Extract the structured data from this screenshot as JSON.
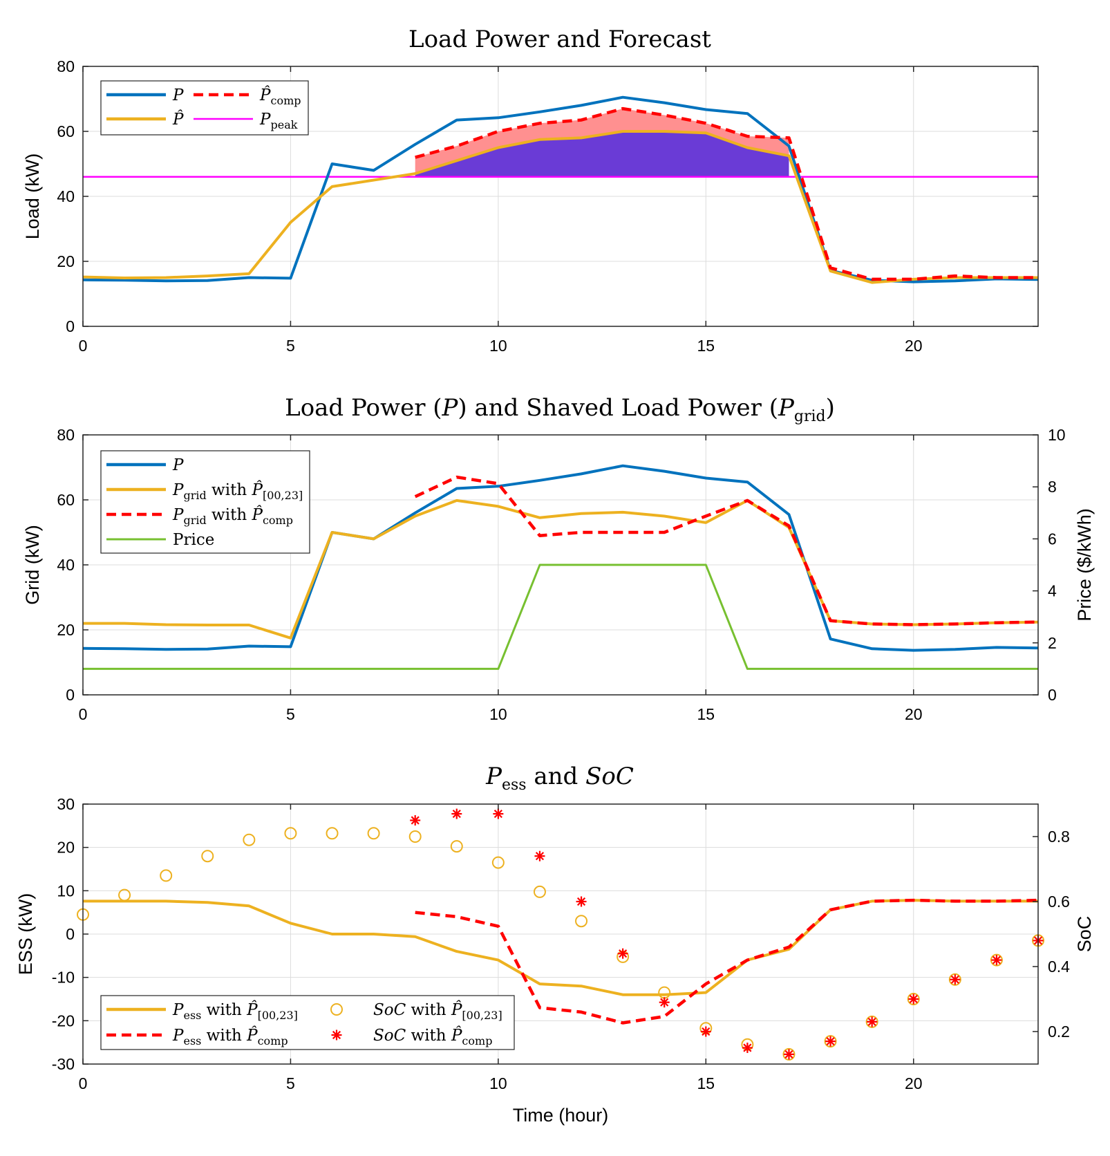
{
  "colors": {
    "P": "#0072BD",
    "Phat": "#EDB120",
    "Pcomp": "#FF0000",
    "Ppeak": "#FF00FF",
    "Price": "#77C030",
    "fillPink": "#FF9090",
    "fillPurple": "#6A3BD6",
    "axis": "#262626"
  },
  "xlabel": "Time (hour)",
  "chart_data": [
    {
      "id": "panel1",
      "type": "line",
      "title": "Load Power and Forecast",
      "xlabel": "",
      "ylabel": "Load (kW)",
      "xlim": [
        0,
        23
      ],
      "ylim": [
        0,
        80
      ],
      "xticks": [
        0,
        5,
        10,
        15,
        20
      ],
      "yticks": [
        0,
        20,
        40,
        60,
        80
      ],
      "peak_value": 46,
      "legend": [
        {
          "label": "P"
        },
        {
          "label": "P̂_comp"
        },
        {
          "label": "P̂"
        },
        {
          "label": "P_peak"
        }
      ],
      "series": [
        {
          "name": "P",
          "x": [
            0,
            1,
            2,
            3,
            4,
            5,
            6,
            7,
            8,
            9,
            10,
            11,
            12,
            13,
            14,
            15,
            16,
            17,
            18,
            19,
            20,
            21,
            22,
            23
          ],
          "values": [
            14.3,
            14.2,
            14.0,
            14.1,
            15.0,
            14.8,
            50.0,
            48.0,
            56.0,
            63.5,
            64.2,
            66.0,
            68.0,
            70.5,
            68.8,
            66.7,
            65.5,
            55.5,
            17.2,
            14.2,
            13.7,
            14.0,
            14.6,
            14.4
          ]
        },
        {
          "name": "P̂",
          "x": [
            0,
            1,
            2,
            3,
            4,
            5,
            6,
            7,
            8,
            9,
            10,
            11,
            12,
            13,
            14,
            15,
            16,
            17,
            18,
            19,
            20,
            21,
            22,
            23
          ],
          "values": [
            15.2,
            14.9,
            15.0,
            15.5,
            16.2,
            32.0,
            43.0,
            45.0,
            47.0,
            51.0,
            55.0,
            57.5,
            58.0,
            60.0,
            60.0,
            59.5,
            55.0,
            52.5,
            17.0,
            13.5,
            14.5,
            15.0,
            15.0,
            15.0
          ]
        },
        {
          "name": "P̂_comp",
          "x": [
            8,
            9,
            10,
            11,
            12,
            13,
            14,
            15,
            16,
            17,
            18,
            19,
            20,
            21,
            22,
            23
          ],
          "values": [
            52.0,
            55.5,
            60.0,
            62.5,
            63.5,
            67.0,
            65.0,
            62.5,
            58.5,
            58.0,
            18.0,
            14.5,
            14.5,
            15.5,
            15.0,
            15.0
          ]
        },
        {
          "name": "P_peak",
          "x": [
            0,
            23
          ],
          "values": [
            46,
            46
          ]
        }
      ]
    },
    {
      "id": "panel2",
      "type": "line",
      "title": "Load Power (P) and Shaved Load Power (P_grid)",
      "xlabel": "",
      "ylabel": "Grid (kW)",
      "y2label": "Price ($/kWh)",
      "xlim": [
        0,
        23
      ],
      "ylim": [
        0,
        80
      ],
      "y2lim": [
        0,
        10
      ],
      "xticks": [
        0,
        5,
        10,
        15,
        20
      ],
      "yticks": [
        0,
        20,
        40,
        60,
        80
      ],
      "y2ticks": [
        0,
        2,
        4,
        6,
        8,
        10
      ],
      "legend": [
        {
          "label": "P"
        },
        {
          "label": "P_grid with P̂_[00,23]"
        },
        {
          "label": "P_grid with P̂_comp"
        },
        {
          "label": "Price"
        }
      ],
      "series": [
        {
          "name": "P",
          "x": [
            0,
            1,
            2,
            3,
            4,
            5,
            6,
            7,
            8,
            9,
            10,
            11,
            12,
            13,
            14,
            15,
            16,
            17,
            18,
            19,
            20,
            21,
            22,
            23
          ],
          "values": [
            14.3,
            14.2,
            14.0,
            14.1,
            15.0,
            14.8,
            50.0,
            48.0,
            56.0,
            63.5,
            64.2,
            66.0,
            68.0,
            70.5,
            68.8,
            66.7,
            65.5,
            55.5,
            17.2,
            14.2,
            13.7,
            14.0,
            14.6,
            14.4
          ]
        },
        {
          "name": "P_grid with P̂_[00,23]",
          "x": [
            0,
            1,
            2,
            3,
            4,
            5,
            6,
            7,
            8,
            9,
            10,
            11,
            12,
            13,
            14,
            15,
            16,
            17,
            18,
            19,
            20,
            21,
            22,
            23
          ],
          "values": [
            22.0,
            22.0,
            21.6,
            21.5,
            21.5,
            17.5,
            50.0,
            48.0,
            55.0,
            59.8,
            58.0,
            54.5,
            55.8,
            56.2,
            55.0,
            53.0,
            59.8,
            51.5,
            22.8,
            21.8,
            21.6,
            21.8,
            22.2,
            22.4
          ]
        },
        {
          "name": "P_grid with P̂_comp",
          "x": [
            8,
            9,
            10,
            11,
            12,
            13,
            14,
            15,
            16,
            17,
            18,
            19,
            20,
            21,
            22,
            23
          ],
          "values": [
            61.0,
            67.0,
            65.0,
            49.0,
            50.0,
            50.0,
            50.0,
            55.0,
            59.8,
            52.0,
            22.8,
            21.8,
            21.6,
            21.8,
            22.2,
            22.4
          ]
        },
        {
          "name": "Price",
          "axis": "right",
          "x": [
            0,
            10,
            11,
            15,
            16,
            23
          ],
          "values": [
            1,
            1,
            5,
            5,
            1,
            1
          ]
        }
      ]
    },
    {
      "id": "panel3",
      "type": "line",
      "title": "P_ess and SoC",
      "xlabel": "Time (hour)",
      "ylabel": "ESS (kW)",
      "y2label": "SoC",
      "xlim": [
        0,
        23
      ],
      "ylim": [
        -30,
        30
      ],
      "y2lim": [
        0.1,
        0.9
      ],
      "xticks": [
        0,
        5,
        10,
        15,
        20
      ],
      "yticks": [
        -30,
        -20,
        -10,
        0,
        10,
        20,
        30
      ],
      "y2ticks": [
        0.2,
        0.4,
        0.6,
        0.8
      ],
      "legend": [
        {
          "label": "P_ess with P̂_[00,23]"
        },
        {
          "label": "SoC with P̂_[00,23]"
        },
        {
          "label": "P_ess with P̂_comp"
        },
        {
          "label": "SoC with P̂_comp"
        }
      ],
      "series": [
        {
          "name": "P_ess with P̂_[00,23]",
          "x": [
            0,
            1,
            2,
            3,
            4,
            5,
            6,
            7,
            8,
            9,
            10,
            11,
            12,
            13,
            14,
            15,
            16,
            17,
            18,
            19,
            20,
            21,
            22,
            23
          ],
          "values": [
            7.6,
            7.6,
            7.6,
            7.3,
            6.5,
            2.5,
            0.0,
            0.0,
            -0.6,
            -4.0,
            -6.0,
            -11.5,
            -12.0,
            -14.0,
            -14.0,
            -13.5,
            -6.0,
            -3.5,
            5.6,
            7.6,
            7.8,
            7.6,
            7.6,
            7.6
          ]
        },
        {
          "name": "P_ess with P̂_comp",
          "x": [
            8,
            9,
            10,
            11,
            12,
            13,
            14,
            15,
            16,
            17,
            18,
            19,
            20,
            21,
            22,
            23
          ],
          "values": [
            5.0,
            4.0,
            1.8,
            -17.0,
            -18.0,
            -20.5,
            -19.0,
            -11.5,
            -6.0,
            -3.0,
            5.6,
            7.6,
            7.8,
            7.6,
            7.6,
            7.8
          ]
        },
        {
          "name": "SoC with P̂_[00,23]",
          "axis": "right",
          "marker": "circle",
          "x": [
            0,
            1,
            2,
            3,
            4,
            5,
            6,
            7,
            8,
            9,
            10,
            11,
            12,
            13,
            14,
            15,
            16,
            17,
            18,
            19,
            20,
            21,
            22,
            23
          ],
          "values": [
            0.56,
            0.62,
            0.68,
            0.74,
            0.79,
            0.81,
            0.81,
            0.81,
            0.8,
            0.77,
            0.72,
            0.63,
            0.54,
            0.43,
            0.32,
            0.21,
            0.16,
            0.13,
            0.17,
            0.23,
            0.3,
            0.36,
            0.42,
            0.48
          ]
        },
        {
          "name": "SoC with P̂_comp",
          "axis": "right",
          "marker": "star",
          "x": [
            8,
            9,
            10,
            11,
            12,
            13,
            14,
            15,
            16,
            17,
            18,
            19,
            20,
            21,
            22,
            23
          ],
          "values": [
            0.85,
            0.87,
            0.87,
            0.74,
            0.6,
            0.44,
            0.29,
            0.2,
            0.15,
            0.13,
            0.17,
            0.23,
            0.3,
            0.36,
            0.42,
            0.48
          ]
        }
      ]
    }
  ]
}
